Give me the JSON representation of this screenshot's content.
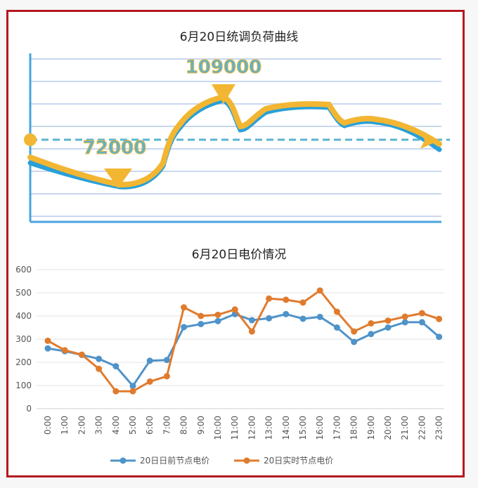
{
  "chart_data": [
    {
      "type": "line",
      "title": "6月20日统调负荷曲线",
      "annotations": [
        {
          "label": "109000",
          "kind": "peak"
        },
        {
          "label": "72000",
          "kind": "valley"
        }
      ],
      "series": [
        {
          "color": "#29a0d8"
        },
        {
          "color": "#f2b632"
        }
      ],
      "grid": true
    },
    {
      "type": "line",
      "title": "6月20日电价情况",
      "categories": [
        "0:00",
        "1:00",
        "2:00",
        "3:00",
        "4:00",
        "5:00",
        "6:00",
        "7:00",
        "8:00",
        "9:00",
        "10:00",
        "11:00",
        "12:00",
        "13:00",
        "14:00",
        "15:00",
        "16:00",
        "17:00",
        "18:00",
        "19:00",
        "20:00",
        "21:00",
        "22:00",
        "23:00"
      ],
      "yticks": [
        "0",
        "100",
        "200",
        "300",
        "400",
        "500",
        "600"
      ],
      "ylim": [
        0,
        600
      ],
      "grid": true,
      "legend_position": "bottom",
      "series": [
        {
          "name": "20日日前节点电价",
          "color": "#4f93c9",
          "values": [
            260,
            248,
            232,
            215,
            183,
            98,
            207,
            210,
            352,
            365,
            378,
            408,
            382,
            390,
            408,
            388,
            396,
            350,
            288,
            322,
            350,
            373,
            373,
            310
          ]
        },
        {
          "name": "20日实时节点电价",
          "color": "#e07b2e",
          "values": [
            293,
            252,
            233,
            172,
            75,
            75,
            117,
            140,
            437,
            400,
            405,
            428,
            333,
            475,
            470,
            458,
            510,
            418,
            333,
            368,
            380,
            397,
            412,
            387
          ]
        }
      ]
    }
  ]
}
